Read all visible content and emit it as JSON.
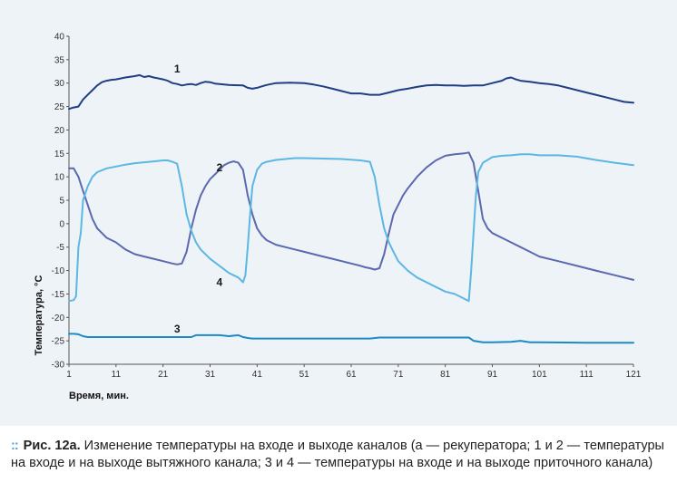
{
  "chart_data": {
    "type": "line",
    "xlabel": "Время, мин.",
    "ylabel": "Температура, °С",
    "xlim": [
      1,
      121
    ],
    "ylim": [
      -30,
      40
    ],
    "x_ticks": [
      1,
      11,
      21,
      31,
      41,
      51,
      61,
      71,
      81,
      91,
      101,
      111,
      121
    ],
    "y_ticks": [
      40,
      35,
      30,
      25,
      20,
      15,
      10,
      5,
      0,
      -5,
      -10,
      -15,
      -20,
      -25,
      -30
    ],
    "grid": false,
    "series": [
      {
        "name": "1",
        "color": "#1f3f82",
        "label_pos": [
          24,
          33
        ],
        "x": [
          1,
          2,
          3,
          4,
          5,
          6,
          7,
          8,
          9,
          10,
          11,
          13,
          15,
          16,
          17,
          18,
          19,
          20,
          21,
          22,
          23,
          24,
          25,
          26,
          27,
          28,
          29,
          30,
          31,
          32,
          33,
          35,
          38,
          39,
          40,
          41,
          42,
          43,
          45,
          48,
          51,
          53,
          55,
          57,
          59,
          61,
          63,
          65,
          67,
          69,
          71,
          73,
          75,
          77,
          79,
          81,
          83,
          85,
          87,
          89,
          91,
          93,
          94,
          95,
          96,
          97,
          99,
          101,
          103,
          105,
          107,
          109,
          111,
          113,
          115,
          117,
          119,
          121
        ],
        "y": [
          24.5,
          24.8,
          25,
          26.5,
          27.5,
          28.5,
          29.5,
          30.2,
          30.5,
          30.7,
          30.8,
          31.2,
          31.5,
          31.7,
          31.3,
          31.5,
          31.2,
          31,
          30.8,
          30.5,
          30,
          29.8,
          29.5,
          29.7,
          29.8,
          29.6,
          30,
          30.3,
          30.2,
          29.9,
          29.8,
          29.6,
          29.5,
          29.0,
          28.8,
          29.0,
          29.3,
          29.6,
          30,
          30.1,
          30,
          29.7,
          29.3,
          28.8,
          28.3,
          27.8,
          27.8,
          27.5,
          27.5,
          28,
          28.5,
          28.8,
          29.2,
          29.5,
          29.6,
          29.5,
          29.5,
          29.4,
          29.5,
          29.5,
          30,
          30.5,
          31,
          31.2,
          30.8,
          30.5,
          30.3,
          30,
          29.8,
          29.5,
          29,
          28.5,
          28,
          27.5,
          27,
          26.5,
          26,
          25.8
        ]
      },
      {
        "name": "2",
        "color": "#5b6aae",
        "label_pos": [
          33,
          12
        ],
        "x": [
          1,
          2,
          3,
          4,
          5,
          6,
          7,
          9,
          11,
          13,
          15,
          17,
          19,
          21,
          23,
          24,
          25,
          26,
          27,
          28,
          29,
          30,
          31,
          32,
          33,
          34,
          35,
          36,
          37,
          38,
          39,
          40,
          41,
          42,
          43,
          45,
          47,
          49,
          51,
          53,
          55,
          57,
          59,
          61,
          63,
          64,
          65,
          66,
          67,
          68,
          69,
          70,
          71,
          72,
          73,
          75,
          77,
          79,
          81,
          83,
          85,
          86,
          87,
          88,
          89,
          90,
          91,
          93,
          95,
          97,
          99,
          101,
          105,
          109,
          113,
          117,
          121
        ],
        "y": [
          11.8,
          11.8,
          10,
          7,
          4,
          1,
          -1,
          -3,
          -4,
          -5.5,
          -6.5,
          -7,
          -7.5,
          -8,
          -8.5,
          -8.7,
          -8.5,
          -6,
          -1,
          3,
          6,
          8,
          9.5,
          10.5,
          11.5,
          12.5,
          13,
          13.3,
          13,
          11.5,
          6,
          2,
          -1,
          -2.5,
          -3.5,
          -4.5,
          -5,
          -5.5,
          -6,
          -6.5,
          -7,
          -7.5,
          -8,
          -8.5,
          -9,
          -9.3,
          -9.5,
          -9.8,
          -9.5,
          -6.5,
          -2,
          2,
          4,
          6,
          7.5,
          10,
          12,
          13.5,
          14.5,
          14.8,
          15,
          15.2,
          13,
          7,
          1,
          -1,
          -2,
          -3,
          -4,
          -5,
          -6,
          -7,
          -8,
          -9,
          -10,
          -11,
          -12
        ]
      },
      {
        "name": "3",
        "color": "#1e8ac4",
        "label_pos": [
          24,
          -22.5
        ],
        "x": [
          1,
          2,
          3,
          4,
          5,
          11,
          21,
          27,
          28,
          31,
          33,
          35,
          37,
          38,
          39,
          40,
          41,
          51,
          61,
          63,
          65,
          67,
          71,
          81,
          86,
          87,
          89,
          91,
          95,
          97,
          99,
          101,
          111,
          121
        ],
        "y": [
          -23.5,
          -23.5,
          -23.6,
          -24,
          -24.2,
          -24.2,
          -24.2,
          -24.2,
          -23.8,
          -23.8,
          -23.8,
          -24,
          -23.8,
          -24.2,
          -24.4,
          -24.5,
          -24.5,
          -24.5,
          -24.5,
          -24.5,
          -24.5,
          -24.3,
          -24.3,
          -24.3,
          -24.3,
          -25,
          -25.3,
          -25.3,
          -25.2,
          -25,
          -25.3,
          -25.3,
          -25.4,
          -25.4
        ]
      },
      {
        "name": "4",
        "color": "#5cb7e3",
        "label_pos": [
          33,
          -12.5
        ],
        "x": [
          1,
          2,
          2.5,
          3,
          3.5,
          4,
          5,
          6,
          7,
          9,
          11,
          13,
          15,
          17,
          19,
          21,
          22,
          23,
          24,
          25,
          26,
          27,
          28,
          29,
          31,
          33,
          35,
          37,
          38,
          38.5,
          39,
          39.5,
          40,
          41,
          42,
          43,
          45,
          47,
          49,
          51,
          55,
          59,
          63,
          65,
          66,
          67,
          68,
          69,
          70,
          71,
          73,
          75,
          77,
          79,
          81,
          83,
          85,
          86,
          86.5,
          87,
          87.5,
          88,
          89,
          91,
          93,
          95,
          97,
          99,
          101,
          105,
          109,
          113,
          117,
          121
        ],
        "y": [
          -16.5,
          -16.3,
          -15.5,
          -5,
          -2,
          5,
          8,
          10,
          11,
          11.8,
          12.2,
          12.6,
          12.9,
          13.1,
          13.3,
          13.5,
          13.5,
          13.2,
          12.8,
          8,
          2,
          -1.5,
          -4,
          -5.5,
          -7.5,
          -9,
          -10.5,
          -11.5,
          -12.5,
          -11,
          -5,
          2,
          8,
          11.5,
          12.8,
          13.2,
          13.6,
          13.8,
          14,
          14,
          13.9,
          13.8,
          13.5,
          13.2,
          10,
          4,
          -1,
          -4,
          -6,
          -8,
          -10,
          -11.5,
          -12.5,
          -13.5,
          -14.5,
          -15,
          -16,
          -16.5,
          -10,
          -2,
          6,
          11,
          13,
          14.2,
          14.5,
          14.6,
          14.8,
          14.8,
          14.6,
          14.6,
          14.3,
          13.6,
          13,
          12.5
        ]
      }
    ]
  },
  "caption": {
    "bullet": "::",
    "figure_number": "Рис. 12а.",
    "text": "Изменение температуры на входе и выходе каналов (а — рекуператора; 1 и 2 — температуры на входе и на выходе вытяжного канала; 3 и 4 — температуры на входе и на выходе приточного канала)"
  }
}
